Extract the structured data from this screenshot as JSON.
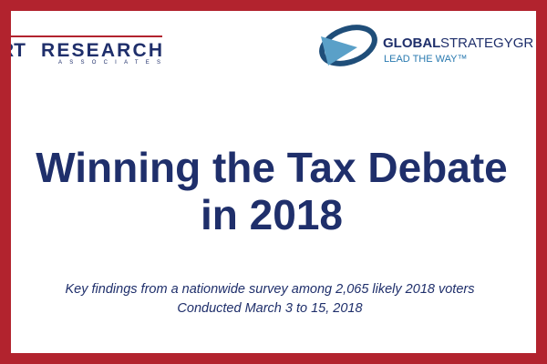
{
  "logos": {
    "left": {
      "prefix": "RT",
      "name": "RESEARCH",
      "tagline": "ASSOCIATES"
    },
    "right": {
      "name_bold": "GLOBAL",
      "name_rest": "STRATEGYGR",
      "tagline": "LEAD THE WAY™"
    }
  },
  "slide": {
    "title": [
      "Winning the Tax Debate",
      "in 2018"
    ],
    "subtitle": [
      "Key findings from a nationwide survey among 2,065 likely 2018 voters",
      "Conducted March 3 to 15, 2018"
    ]
  }
}
